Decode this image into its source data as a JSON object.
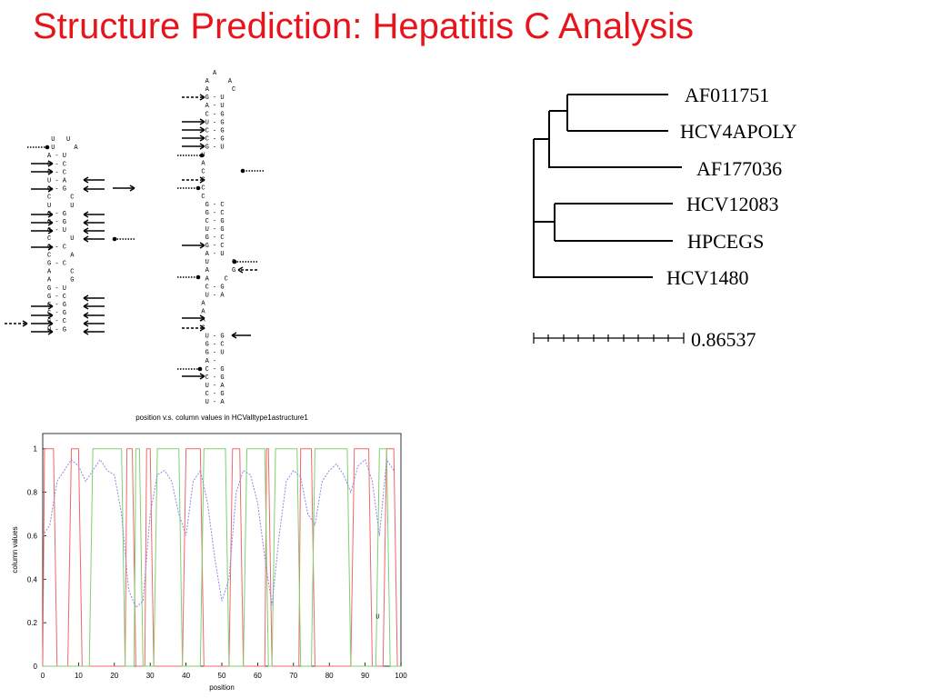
{
  "title": "Structure Prediction: Hepatitis C Analysis",
  "structures": [
    {
      "rows": [
        " U   U",
        " U     A",
        "A - U",
        "G - C",
        "G - C",
        "U - A",
        "C - G",
        "C     C",
        "U     U",
        "C - G",
        "C - G",
        "G - U",
        "C     U",
        "G - C",
        "C     A",
        "G - C",
        "A     C",
        "A     G",
        "G - U",
        "G - C",
        "C - G",
        "C - G",
        "G - C",
        "U - G"
      ]
    },
    {
      "rows": [
        "     A",
        "   A     A",
        "   A      C",
        "   G - U",
        "   A - U",
        "   C - G",
        "   U - G",
        "   C - G",
        "   C - G",
        "   G - U",
        "  U",
        "  A",
        "  C",
        "  G",
        "  C",
        "  C",
        "   G - C",
        "   G - C",
        "   C - G",
        "   U - G",
        "   G - C",
        "   G - C",
        "   A - U",
        "   U      C",
        "   A      G",
        "   A    C",
        "   C - G",
        "   U - A",
        "  A",
        "  A",
        "  A",
        "  G",
        "   U - G",
        "   G - C",
        "   G - U",
        "   A -",
        "   C - G",
        "   C - G",
        "   U - A",
        "   C - G",
        "   U - A"
      ]
    }
  ],
  "tree": {
    "leaves": [
      "AF011751",
      "HCV4APOLY",
      "AF177036",
      "HCV12083",
      "HPCEGS",
      "HCV1480"
    ],
    "scale": "0.86537"
  },
  "chart_data": {
    "type": "line",
    "title": "position v.s. column values in HCValltype1astructure1",
    "xlabel": "position",
    "ylabel": "column values",
    "xlim": [
      0,
      100
    ],
    "ylim": [
      0,
      1.07
    ],
    "xticks": [
      0,
      10,
      20,
      30,
      40,
      50,
      60,
      70,
      80,
      90,
      100
    ],
    "yticks": [
      0,
      0.2,
      0.4,
      0.6,
      0.8,
      1
    ],
    "annotation": {
      "text": "U",
      "x": 93,
      "y": 0.22
    },
    "series": [
      {
        "color": "#f06868",
        "x": [
          0,
          0.5,
          3,
          4,
          7,
          8,
          10,
          11,
          23,
          23.5,
          25,
          26,
          28.5,
          29,
          30,
          31,
          39,
          40,
          44,
          45,
          52,
          53,
          55,
          56,
          62,
          62.5,
          63,
          64,
          71.5,
          72,
          75,
          76,
          86,
          87,
          91,
          92,
          95,
          96,
          98,
          99
        ],
        "values": [
          0,
          1,
          1,
          0,
          0,
          1,
          1,
          0,
          0,
          1,
          1,
          0,
          0,
          1,
          1,
          0,
          0,
          1,
          1,
          0,
          0,
          1,
          1,
          0,
          0,
          1,
          1,
          0,
          0,
          1,
          1,
          0,
          0,
          1,
          1,
          0,
          0,
          1,
          1,
          0
        ]
      },
      {
        "color": "#7fd06e",
        "x": [
          0,
          13,
          14,
          22,
          23,
          25.5,
          26,
          27,
          28,
          31,
          32,
          38,
          39,
          44,
          45,
          51,
          52,
          56,
          57,
          62,
          63,
          64,
          65,
          71,
          72,
          75,
          76,
          85,
          86,
          93,
          94,
          96,
          97,
          100
        ],
        "values": [
          0,
          0,
          1,
          1,
          0,
          0,
          1,
          1,
          0,
          0,
          1,
          1,
          0,
          0,
          1,
          1,
          0,
          0,
          1,
          1,
          0,
          0,
          1,
          1,
          0,
          0,
          1,
          1,
          0,
          0,
          1,
          1,
          0,
          0
        ]
      },
      {
        "color": "#8a8ae0",
        "dashed": true,
        "x": [
          0,
          2,
          4,
          6,
          8,
          10,
          12,
          14,
          16,
          18,
          20,
          22,
          24,
          26,
          28,
          30,
          32,
          34,
          36,
          38,
          40,
          42,
          44,
          46,
          48,
          50,
          52,
          54,
          56,
          58,
          60,
          62,
          64,
          66,
          68,
          70,
          72,
          74,
          76,
          78,
          80,
          82,
          84,
          86,
          88,
          90,
          92,
          94,
          96,
          98
        ],
        "values": [
          0.6,
          0.65,
          0.85,
          0.9,
          0.95,
          0.92,
          0.85,
          0.9,
          0.95,
          0.9,
          0.88,
          0.7,
          0.35,
          0.27,
          0.3,
          0.7,
          0.88,
          0.9,
          0.85,
          0.7,
          0.6,
          0.85,
          0.9,
          0.75,
          0.5,
          0.3,
          0.4,
          0.8,
          0.9,
          0.88,
          0.75,
          0.5,
          0.28,
          0.6,
          0.85,
          0.9,
          0.87,
          0.7,
          0.65,
          0.85,
          0.9,
          0.93,
          0.88,
          0.8,
          0.92,
          0.95,
          0.85,
          0.6,
          0.95,
          0.9
        ]
      }
    ]
  }
}
